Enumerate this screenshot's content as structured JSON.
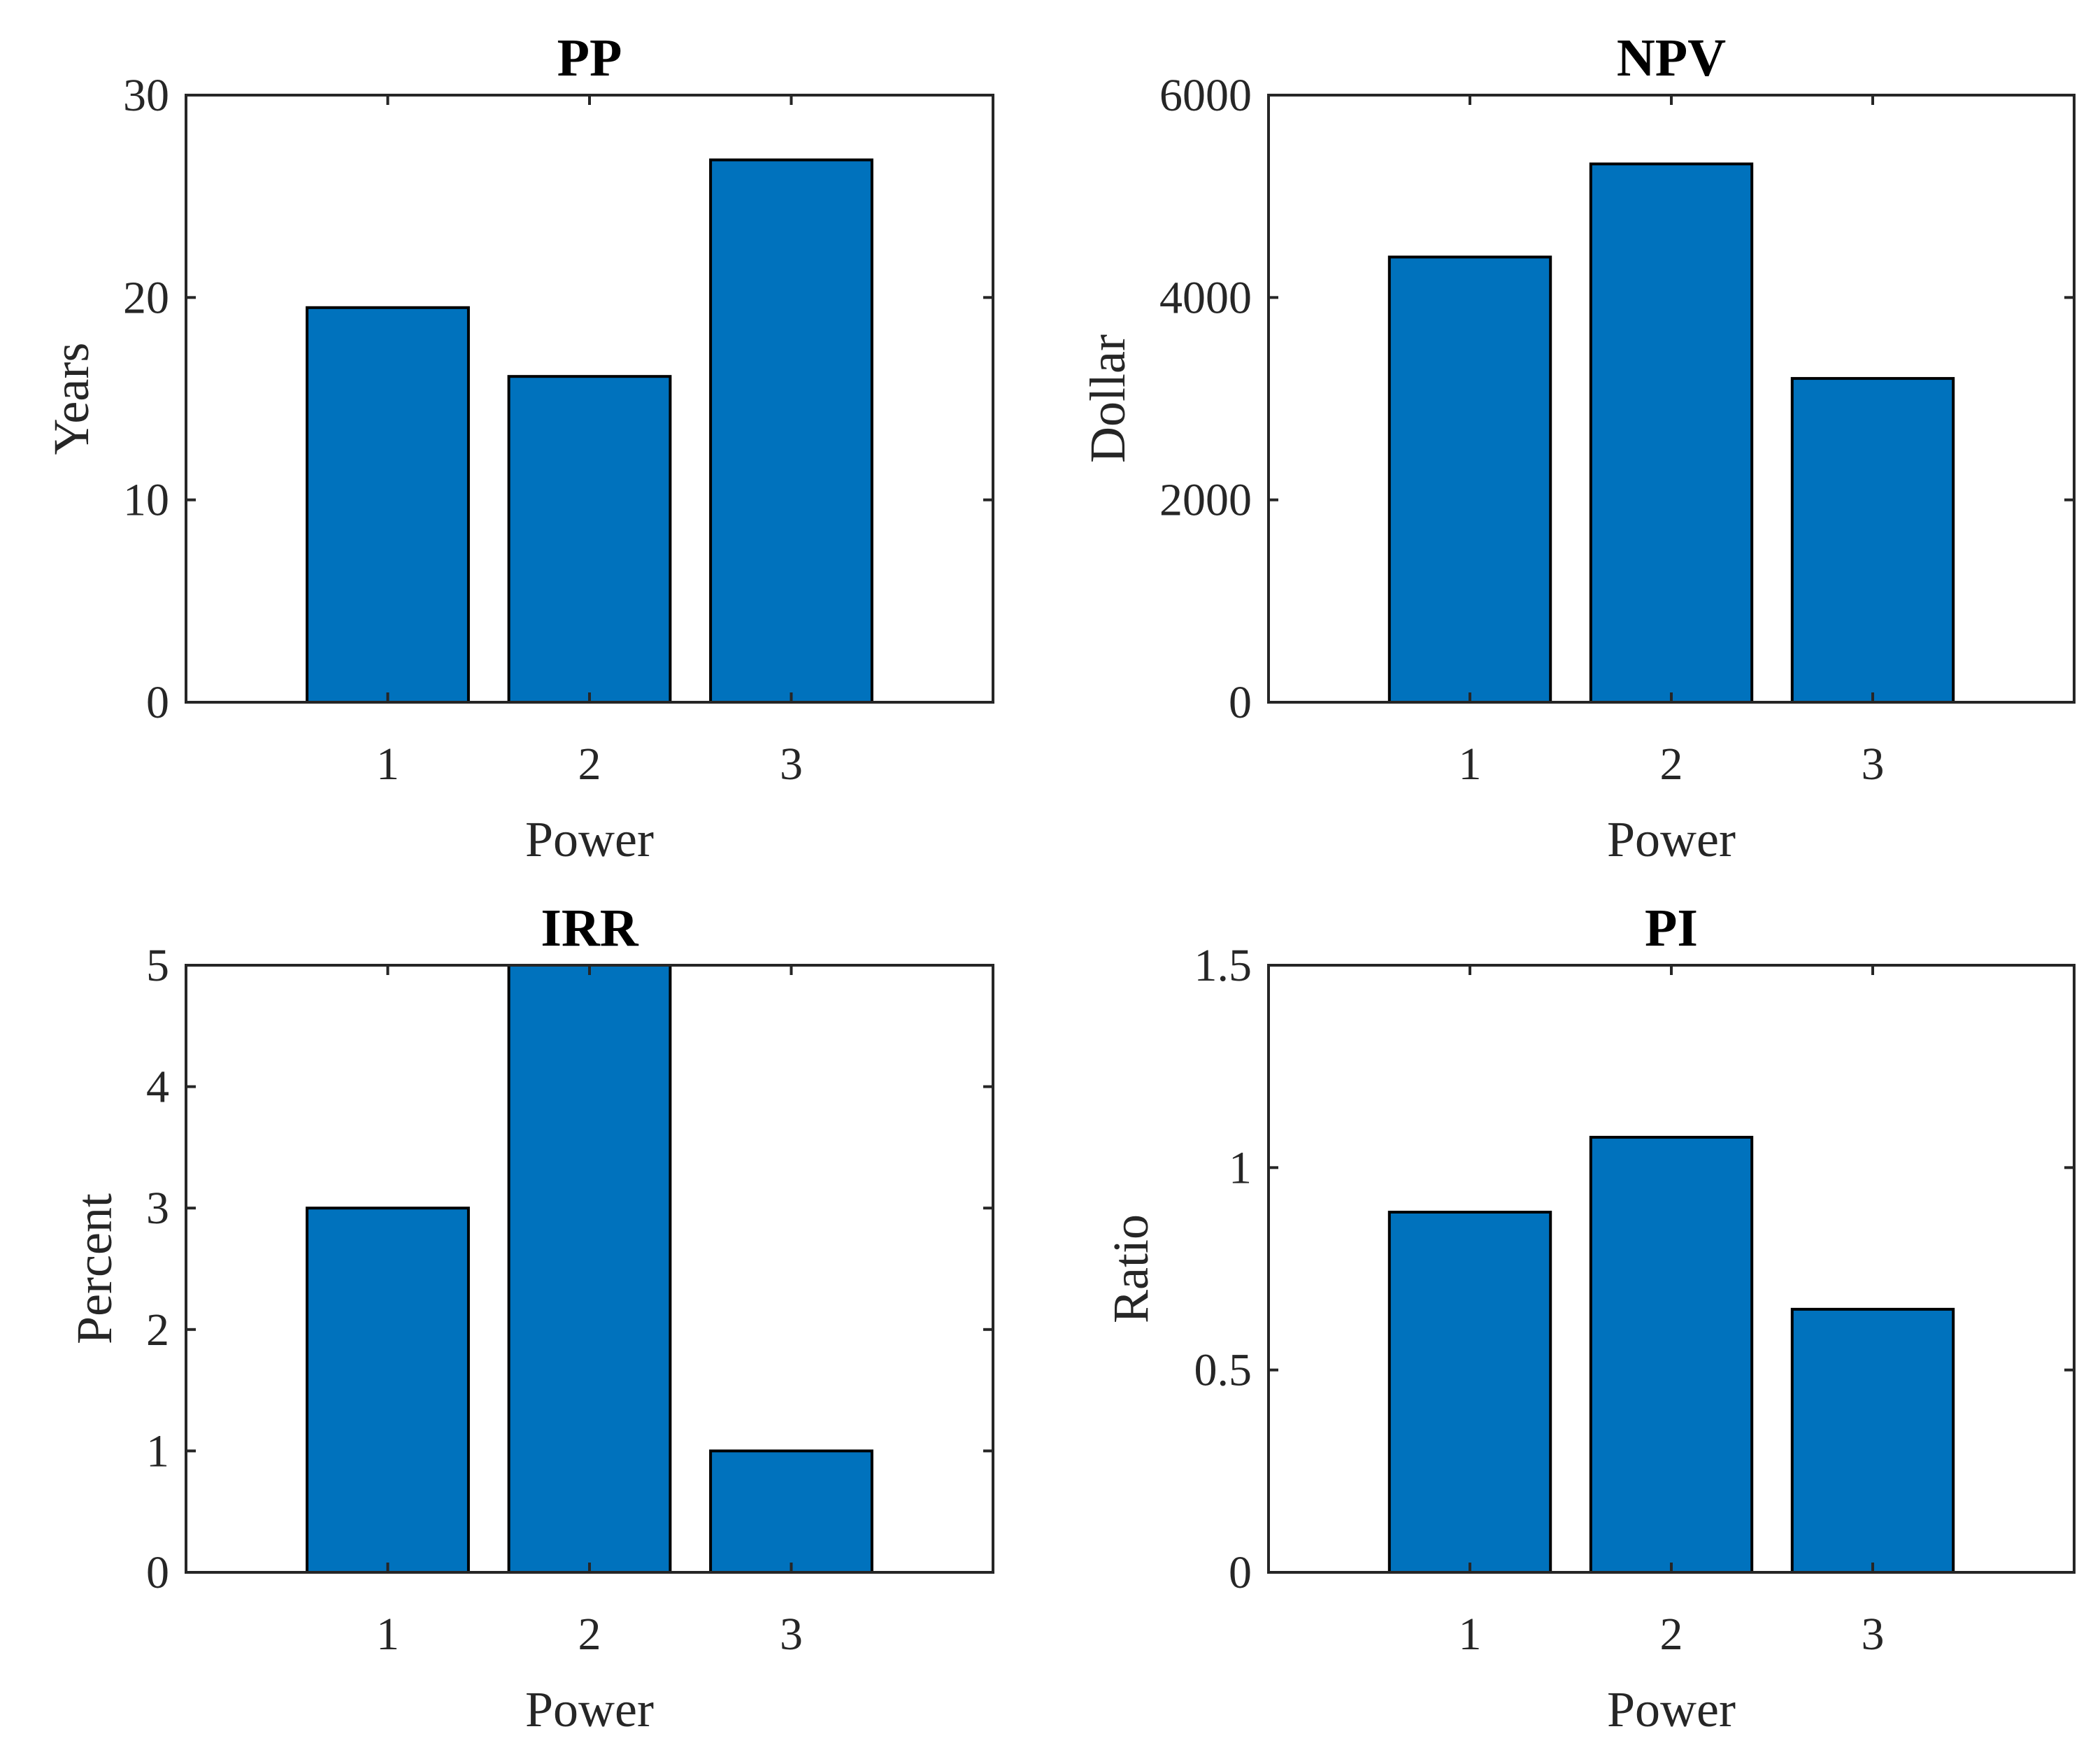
{
  "chart_data": [
    {
      "type": "bar",
      "title": "PP",
      "xlabel": "Power",
      "ylabel": "Years",
      "categories": [
        "1",
        "2",
        "3"
      ],
      "values": [
        19.5,
        16.1,
        26.8
      ],
      "ylim": [
        0,
        30
      ],
      "yticks": [
        "0",
        "10",
        "20",
        "30"
      ],
      "bar_color": "#0072BD"
    },
    {
      "type": "bar",
      "title": "NPV",
      "xlabel": "Power",
      "ylabel": "Dollar",
      "categories": [
        "1",
        "2",
        "3"
      ],
      "values": [
        4400,
        5320,
        3200
      ],
      "ylim": [
        0,
        6000
      ],
      "yticks": [
        "0",
        "2000",
        "4000",
        "6000"
      ],
      "bar_color": "#0072BD"
    },
    {
      "type": "bar",
      "title": "IRR",
      "xlabel": "Power",
      "ylabel": "Percent",
      "categories": [
        "1",
        "2",
        "3"
      ],
      "values": [
        3,
        5,
        1
      ],
      "ylim": [
        0,
        5
      ],
      "yticks": [
        "0",
        "1",
        "2",
        "3",
        "4",
        "5"
      ],
      "bar_color": "#0072BD"
    },
    {
      "type": "bar",
      "title": "PI",
      "xlabel": "Power",
      "ylabel": "Ratio",
      "categories": [
        "1",
        "2",
        "3"
      ],
      "values": [
        0.89,
        1.075,
        0.65
      ],
      "ylim": [
        0,
        1.5
      ],
      "yticks": [
        "0",
        "0.5",
        "1",
        "1.5"
      ],
      "bar_color": "#0072BD"
    }
  ]
}
